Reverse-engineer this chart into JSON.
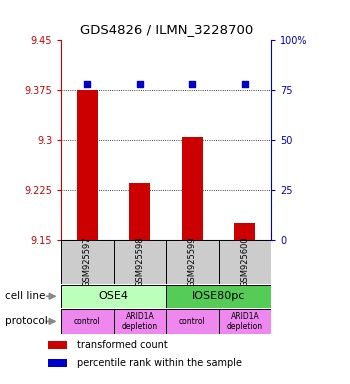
{
  "title": "GDS4826 / ILMN_3228700",
  "samples": [
    "GSM925597",
    "GSM925598",
    "GSM925599",
    "GSM925600"
  ],
  "bar_values": [
    9.375,
    9.235,
    9.305,
    9.175
  ],
  "bar_bottom": 9.15,
  "bar_color": "#cc0000",
  "dot_values": [
    78,
    78,
    78,
    78
  ],
  "dot_color": "#0000cc",
  "ylim_left": [
    9.15,
    9.45
  ],
  "ylim_right": [
    0,
    100
  ],
  "yticks_left": [
    9.15,
    9.225,
    9.3,
    9.375,
    9.45
  ],
  "yticks_right": [
    0,
    25,
    50,
    75,
    100
  ],
  "ytick_labels_left": [
    "9.15",
    "9.225",
    "9.3",
    "9.375",
    "9.45"
  ],
  "ytick_labels_right": [
    "0",
    "25",
    "50",
    "75",
    "100%"
  ],
  "left_tick_color": "#cc0000",
  "right_tick_color": "#0000cc",
  "grid_values": [
    9.225,
    9.3,
    9.375
  ],
  "cell_line_labels": [
    "OSE4",
    "IOSE80pc"
  ],
  "cell_line_colors": [
    "#bbffbb",
    "#55cc55"
  ],
  "cell_line_spans": [
    [
      0,
      2
    ],
    [
      2,
      4
    ]
  ],
  "protocol_labels": [
    "control",
    "ARID1A\ndepletion",
    "control",
    "ARID1A\ndepletion"
  ],
  "protocol_color": "#ee88ee",
  "legend_red_label": "transformed count",
  "legend_blue_label": "percentile rank within the sample",
  "cell_line_row_label": "cell line",
  "protocol_row_label": "protocol",
  "background_color": "#ffffff",
  "sample_box_color": "#cccccc"
}
